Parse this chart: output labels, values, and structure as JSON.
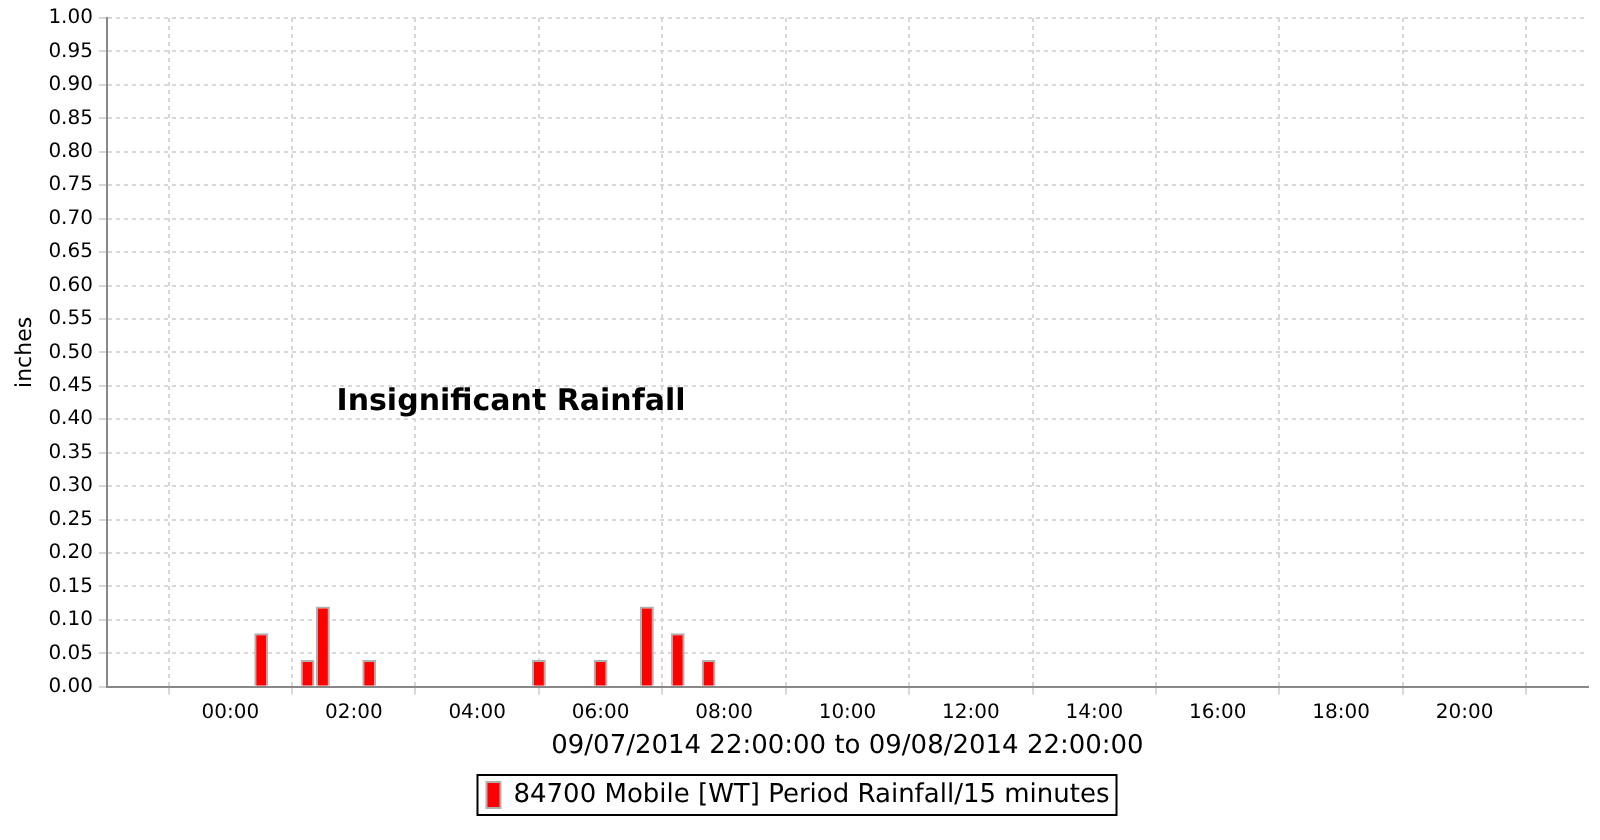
{
  "chart_data": {
    "type": "bar",
    "xlabel": "09/07/2014 22:00:00 to 09/08/2014 22:00:00",
    "ylabel": "inches",
    "x": [
      "2014-09-08T00:30",
      "2014-09-08T01:15",
      "2014-09-08T01:30",
      "2014-09-08T02:15",
      "2014-09-08T05:00",
      "2014-09-08T06:00",
      "2014-09-08T06:45",
      "2014-09-08T07:15",
      "2014-09-08T07:45"
    ],
    "series": [
      {
        "name": "84700 Mobile [WT] Period Rainfall/15 minutes",
        "color": "#ff0000",
        "values": [
          0.08,
          0.04,
          0.12,
          0.04,
          0.04,
          0.04,
          0.12,
          0.08,
          0.04
        ]
      }
    ],
    "xlim": [
      "2014-09-07T22:00",
      "2014-09-08T22:00"
    ],
    "xticks": [
      {
        "value": "2014-09-08T00:00",
        "label": "00:00"
      },
      {
        "value": "2014-09-08T02:00",
        "label": "02:00"
      },
      {
        "value": "2014-09-08T04:00",
        "label": "04:00"
      },
      {
        "value": "2014-09-08T06:00",
        "label": "06:00"
      },
      {
        "value": "2014-09-08T08:00",
        "label": "08:00"
      },
      {
        "value": "2014-09-08T10:00",
        "label": "10:00"
      },
      {
        "value": "2014-09-08T12:00",
        "label": "12:00"
      },
      {
        "value": "2014-09-08T14:00",
        "label": "14:00"
      },
      {
        "value": "2014-09-08T16:00",
        "label": "16:00"
      },
      {
        "value": "2014-09-08T18:00",
        "label": "18:00"
      },
      {
        "value": "2014-09-08T20:00",
        "label": "20:00"
      }
    ],
    "ylim": [
      0,
      1
    ],
    "yticks": [
      {
        "value": 0,
        "label": "0.00"
      },
      {
        "value": 0.05,
        "label": "0.05"
      },
      {
        "value": 0.1,
        "label": "0.10"
      },
      {
        "value": 0.15,
        "label": "0.15"
      },
      {
        "value": 0.2,
        "label": "0.20"
      },
      {
        "value": 0.25,
        "label": "0.25"
      },
      {
        "value": 0.3,
        "label": "0.30"
      },
      {
        "value": 0.35,
        "label": "0.35"
      },
      {
        "value": 0.4,
        "label": "0.40"
      },
      {
        "value": 0.45,
        "label": "0.45"
      },
      {
        "value": 0.5,
        "label": "0.50"
      },
      {
        "value": 0.55,
        "label": "0.55"
      },
      {
        "value": 0.6,
        "label": "0.60"
      },
      {
        "value": 0.65,
        "label": "0.65"
      },
      {
        "value": 0.7,
        "label": "0.70"
      },
      {
        "value": 0.75,
        "label": "0.75"
      },
      {
        "value": 0.8,
        "label": "0.80"
      },
      {
        "value": 0.85,
        "label": "0.85"
      },
      {
        "value": 0.9,
        "label": "0.90"
      },
      {
        "value": 0.95,
        "label": "0.95"
      },
      {
        "value": 1,
        "label": "1.00"
      }
    ],
    "annotations": [
      "Insignificant Rainfall"
    ],
    "grid": true,
    "legend": "bottom"
  }
}
